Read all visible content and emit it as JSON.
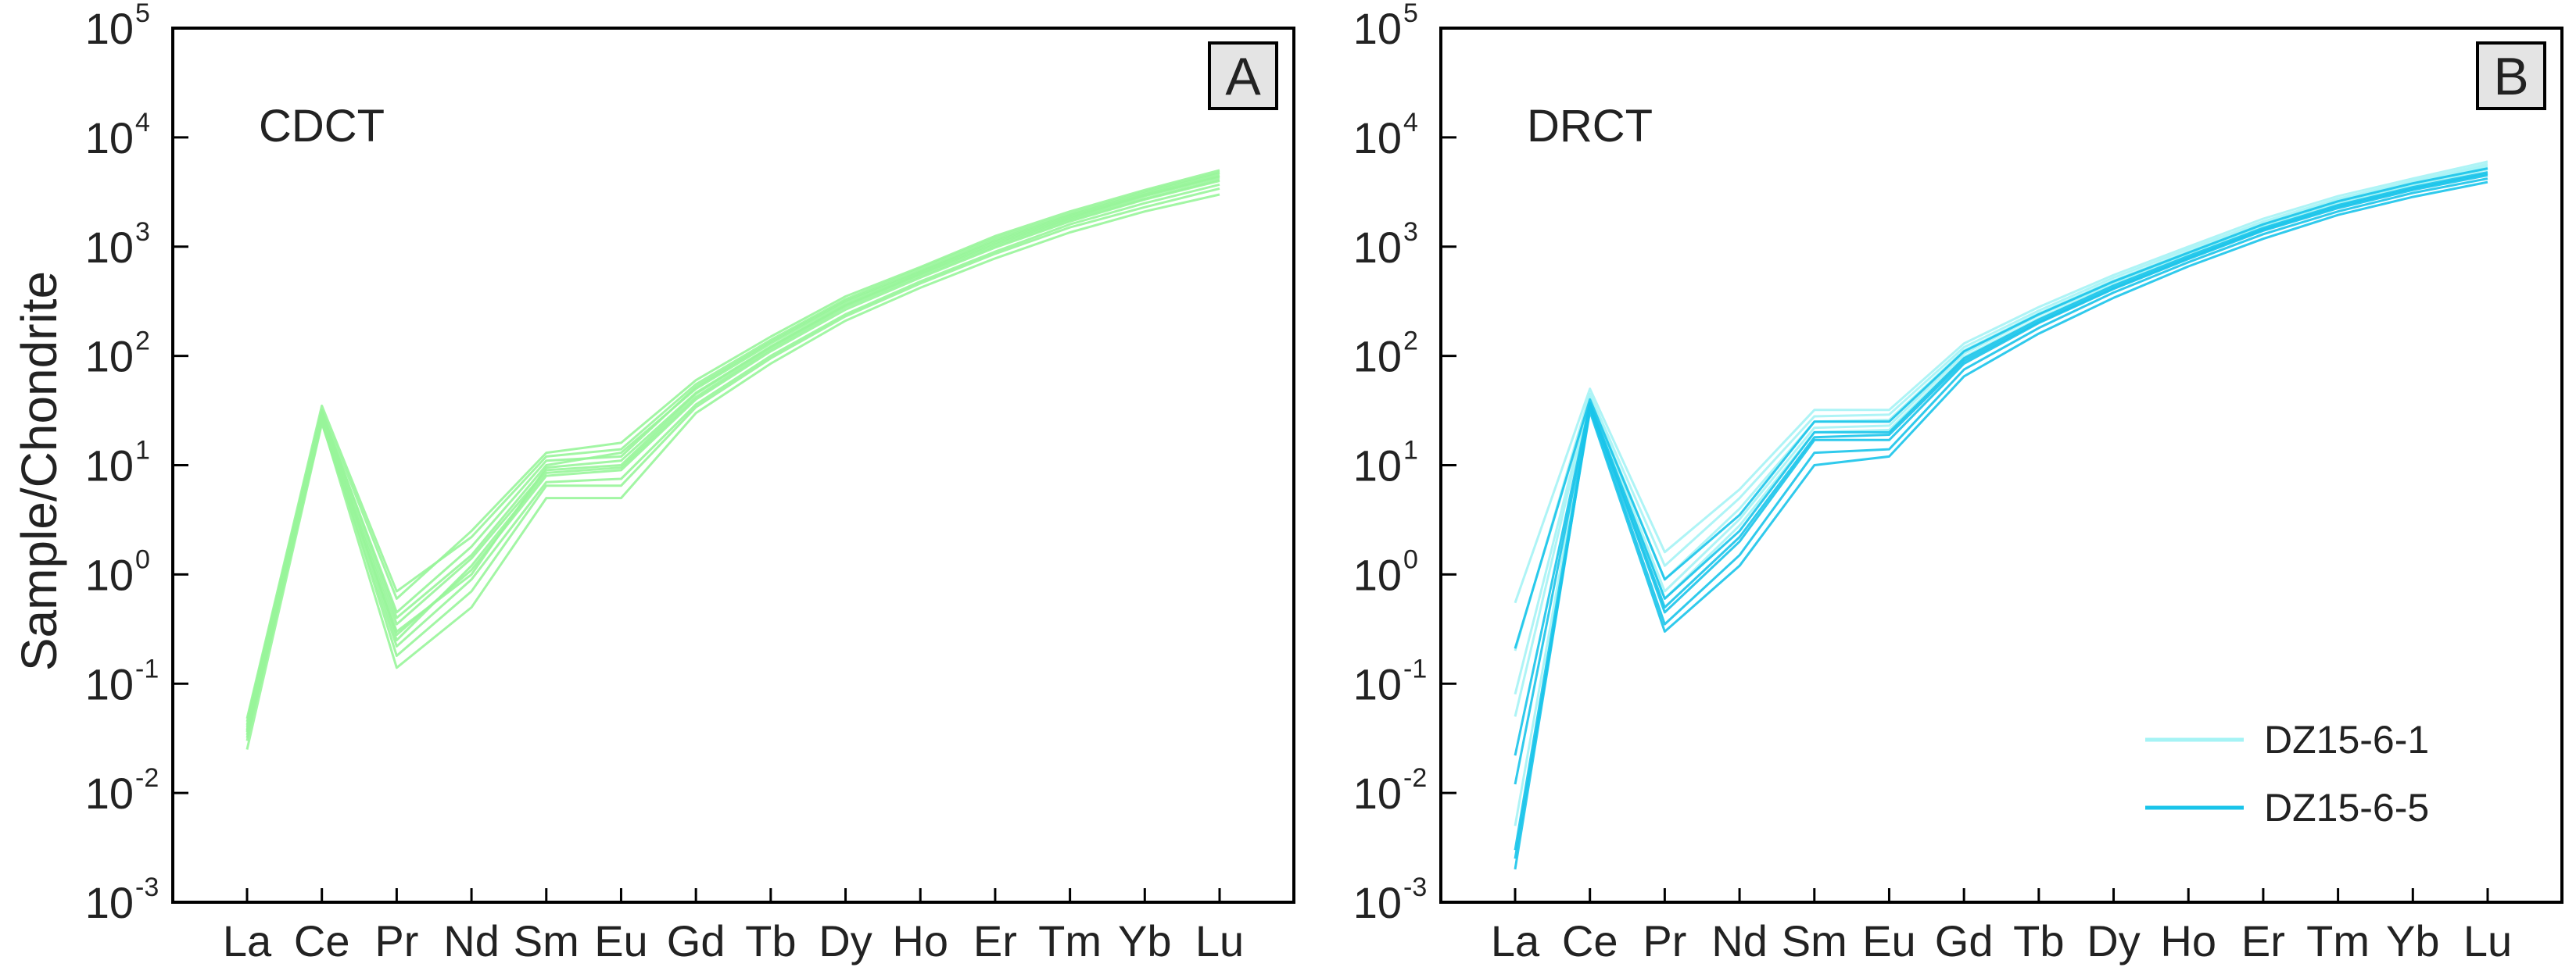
{
  "figure": {
    "ylabel": "Sample/Chondrite"
  },
  "chart_data": [
    {
      "type": "line",
      "panel_label": "A",
      "group_label": "CDCT",
      "categories": [
        "La",
        "Ce",
        "Pr",
        "Nd",
        "Sm",
        "Eu",
        "Gd",
        "Tb",
        "Dy",
        "Ho",
        "Er",
        "Tm",
        "Yb",
        "Lu"
      ],
      "y_scale": "log",
      "ylim": [
        0.001,
        100000
      ],
      "yticks": [
        {
          "base": "10",
          "exp": "-3"
        },
        {
          "base": "10",
          "exp": "-2"
        },
        {
          "base": "10",
          "exp": "-1"
        },
        {
          "base": "10",
          "exp": "0"
        },
        {
          "base": "10",
          "exp": "1"
        },
        {
          "base": "10",
          "exp": "2"
        },
        {
          "base": "10",
          "exp": "3"
        },
        {
          "base": "10",
          "exp": "4"
        },
        {
          "base": "10",
          "exp": "5"
        }
      ],
      "grid": false,
      "legend": null,
      "series": [
        {
          "color": "#98f59a",
          "values": [
            0.045,
            32,
            0.6,
            2.5,
            13,
            16,
            60,
            150,
            350,
            650,
            1250,
            2100,
            3300,
            5000
          ]
        },
        {
          "color": "#98f59a",
          "values": [
            0.04,
            30,
            0.45,
            1.8,
            11,
            12,
            52,
            135,
            320,
            600,
            1150,
            1950,
            3100,
            4700
          ]
        },
        {
          "color": "#98f59a",
          "values": [
            0.036,
            28,
            0.35,
            1.4,
            9,
            10,
            45,
            120,
            290,
            560,
            1050,
            1800,
            2900,
            4300
          ]
        },
        {
          "color": "#98f59a",
          "values": null,
          "skip": true
        },
        {
          "color": "#98f59a",
          "values": [
            0.03,
            26,
            0.28,
            1.1,
            8,
            9,
            40,
            110,
            265,
            520,
            980,
            1700,
            2700,
            4000
          ]
        },
        {
          "color": "#98f59a",
          "values": [
            0.025,
            24,
            0.22,
            0.9,
            7,
            7.5,
            36,
            100,
            240,
            480,
            900,
            1600,
            2500,
            3700
          ]
        },
        {
          "color": "#98f59a",
          "values": [
            0.048,
            35,
            0.7,
            2.2,
            12,
            14,
            55,
            140,
            330,
            630,
            1200,
            2000,
            3200,
            4800
          ]
        },
        {
          "color": "#98f59a",
          "values": [
            0.038,
            29,
            0.3,
            1.0,
            9.5,
            11,
            46,
            122,
            295,
            570,
            1080,
            1850,
            2950,
            4400
          ]
        },
        {
          "color": "#98f59a",
          "values": [
            0.034,
            27,
            0.18,
            0.7,
            6.5,
            6.5,
            34,
            95,
            230,
            460,
            860,
            1500,
            2300,
            3400
          ]
        },
        {
          "color": "#98f59a",
          "values": [
            0.032,
            25,
            0.14,
            0.5,
            5,
            5,
            30,
            85,
            210,
            420,
            780,
            1350,
            2100,
            3000
          ]
        },
        {
          "color": "#98f59a",
          "values": [
            0.042,
            31,
            0.4,
            1.5,
            10,
            13,
            50,
            130,
            310,
            590,
            1120,
            1900,
            3000,
            4500
          ]
        },
        {
          "color": "#98f59a",
          "values": [
            0.037,
            28,
            0.25,
            1.2,
            8.5,
            9.5,
            42,
            115,
            280,
            540,
            1010,
            1750,
            2750,
            4100
          ]
        }
      ]
    },
    {
      "type": "line",
      "panel_label": "B",
      "group_label": "DRCT",
      "categories": [
        "La",
        "Ce",
        "Pr",
        "Nd",
        "Sm",
        "Eu",
        "Gd",
        "Tb",
        "Dy",
        "Ho",
        "Er",
        "Tm",
        "Yb",
        "Lu"
      ],
      "y_scale": "log",
      "ylim": [
        0.001,
        100000
      ],
      "yticks": [
        {
          "base": "10",
          "exp": "-3"
        },
        {
          "base": "10",
          "exp": "-2"
        },
        {
          "base": "10",
          "exp": "-1"
        },
        {
          "base": "10",
          "exp": "0"
        },
        {
          "base": "10",
          "exp": "1"
        },
        {
          "base": "10",
          "exp": "2"
        },
        {
          "base": "10",
          "exp": "3"
        },
        {
          "base": "10",
          "exp": "4"
        },
        {
          "base": "10",
          "exp": "5"
        }
      ],
      "grid": false,
      "legend": {
        "position": "bottom-right",
        "entries": [
          {
            "label": "DZ15-6-1",
            "color": "#a5f3f5"
          },
          {
            "label": "DZ15-6-5",
            "color": "#19c4ea"
          }
        ]
      },
      "series": [
        {
          "name": "DZ15-6-1",
          "color": "#a5f3f5",
          "values": [
            0.55,
            50,
            1.6,
            6,
            32,
            32,
            130,
            280,
            550,
            1000,
            1800,
            2900,
            4200,
            6000
          ]
        },
        {
          "name": "DZ15-6-1",
          "color": "#a5f3f5",
          "values": [
            0.2,
            45,
            1.2,
            5,
            28,
            29,
            120,
            260,
            520,
            950,
            1700,
            2750,
            4000,
            5700
          ]
        },
        {
          "name": "DZ15-6-1",
          "color": "#a5f3f5",
          "values": [
            0.08,
            42,
            0.9,
            4,
            25,
            26,
            112,
            245,
            490,
            900,
            1620,
            2650,
            3850,
            5500
          ]
        },
        {
          "name": "DZ15-6-1",
          "color": "#a5f3f5",
          "values": [
            0.05,
            40,
            0.7,
            3.2,
            22,
            23,
            105,
            235,
            470,
            870,
            1560,
            2550,
            3700,
            5300
          ]
        },
        {
          "name": "DZ15-6-1",
          "color": "#a5f3f5",
          "values": [
            0.005,
            38,
            0.6,
            2.8,
            20,
            21,
            98,
            220,
            450,
            840,
            1500,
            2450,
            3600,
            5100
          ]
        },
        {
          "name": "DZ15-6-5",
          "color": "#19c4ea",
          "values": [
            0.21,
            40,
            0.9,
            3.5,
            25,
            25,
            110,
            240,
            480,
            880,
            1600,
            2600,
            3800,
            5200
          ]
        },
        {
          "name": "DZ15-6-5",
          "color": "#19c4ea",
          "values": [
            0.022,
            37,
            0.6,
            2.5,
            20,
            20,
            95,
            215,
            440,
            820,
            1480,
            2400,
            3500,
            4800
          ]
        },
        {
          "name": "DZ15-6-5",
          "color": "#19c4ea",
          "values": [
            0.003,
            35,
            0.45,
            2.0,
            17,
            17,
            85,
            200,
            410,
            770,
            1400,
            2250,
            3300,
            4500
          ]
        },
        {
          "name": "DZ15-6-5",
          "color": "#19c4ea",
          "values": [
            0.002,
            33,
            0.35,
            1.5,
            13,
            14,
            75,
            180,
            380,
            720,
            1300,
            2100,
            3100,
            4200
          ]
        },
        {
          "name": "DZ15-6-5",
          "color": "#19c4ea",
          "values": [
            0.0025,
            31,
            0.3,
            1.2,
            10,
            12,
            65,
            160,
            340,
            660,
            1180,
            1950,
            2850,
            3900
          ]
        },
        {
          "name": "DZ15-6-5",
          "color": "#19c4ea",
          "values": [
            0.012,
            36,
            0.5,
            2.2,
            18,
            19,
            90,
            205,
            420,
            790,
            1430,
            2320,
            3400,
            4650
          ]
        }
      ]
    }
  ]
}
